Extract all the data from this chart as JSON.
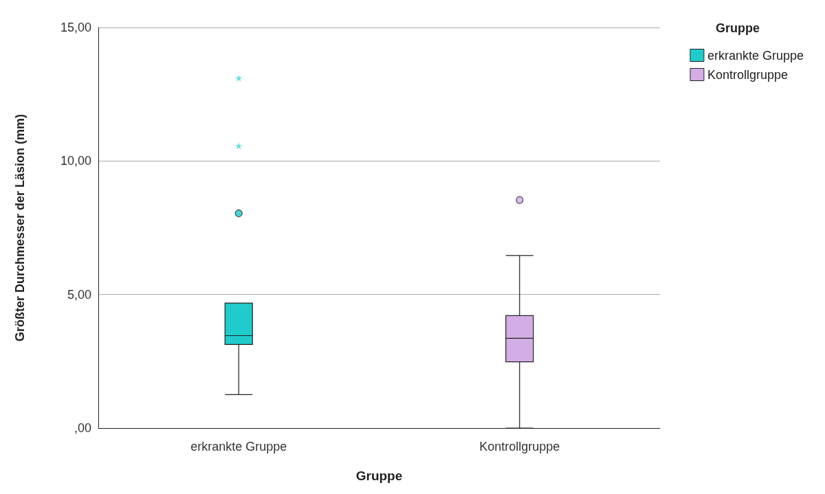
{
  "chart_data": {
    "type": "box",
    "xlabel": "Gruppe",
    "ylabel": "Größter Durchmesser der Läsion (mm)",
    "legend_title": "Gruppe",
    "legend": "top right",
    "grid": "y",
    "categories": [
      "erkrankte Gruppe",
      "Kontrollgruppe"
    ],
    "series": [
      {
        "name": "erkrankte Gruppe",
        "color": "#1fcccb",
        "boxes": [
          {
            "low": 1.25,
            "q1": 3.13,
            "median": 3.46,
            "q3": 4.68,
            "high": 4.68,
            "outliers": [
              8.04
            ]
          },
          null
        ]
      },
      {
        "name": "Kontrollgruppe",
        "color": "#d3ade6",
        "boxes": [
          null,
          {
            "low": 0,
            "q1": 2.48,
            "median": 3.36,
            "q3": 4.21,
            "high": 6.46,
            "outliers": [
              8.54
            ]
          }
        ]
      },
      {
        "type": "scatter",
        "marker": "star",
        "color": "#40d8e0",
        "x": [
          "erkrankte Gruppe",
          "erkrankte Gruppe"
        ],
        "values": [
          10.57,
          13.1
        ]
      }
    ],
    "ylim": [
      0,
      15
    ],
    "yticks": [
      {
        "value": 0,
        "label": ",00"
      },
      {
        "value": 5,
        "label": "5,00"
      },
      {
        "value": 10,
        "label": "10,00"
      },
      {
        "value": 15,
        "label": "15,00"
      }
    ]
  }
}
